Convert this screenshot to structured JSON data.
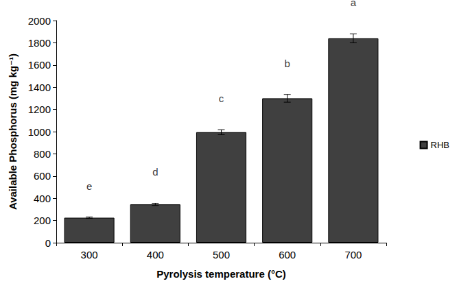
{
  "chart_data": {
    "type": "bar",
    "x_label": "Pyrolysis temperature (°C)",
    "y_label": "Available Phosphorus (mg kg⁻¹)",
    "categories": [
      "300",
      "400",
      "500",
      "600",
      "700"
    ],
    "series": [
      {
        "name": "RHB",
        "color": "#404040",
        "values": [
          225,
          345,
          995,
          1300,
          1840
        ],
        "errors": [
          6,
          10,
          22,
          35,
          40
        ],
        "annotations": [
          "e",
          "d",
          "c",
          "b",
          "a"
        ]
      }
    ],
    "ylim": [
      0,
      2000
    ],
    "yticks": [
      0,
      200,
      400,
      600,
      800,
      1000,
      1200,
      1400,
      1600,
      1800,
      2000
    ],
    "grid": false,
    "legend": "right"
  }
}
